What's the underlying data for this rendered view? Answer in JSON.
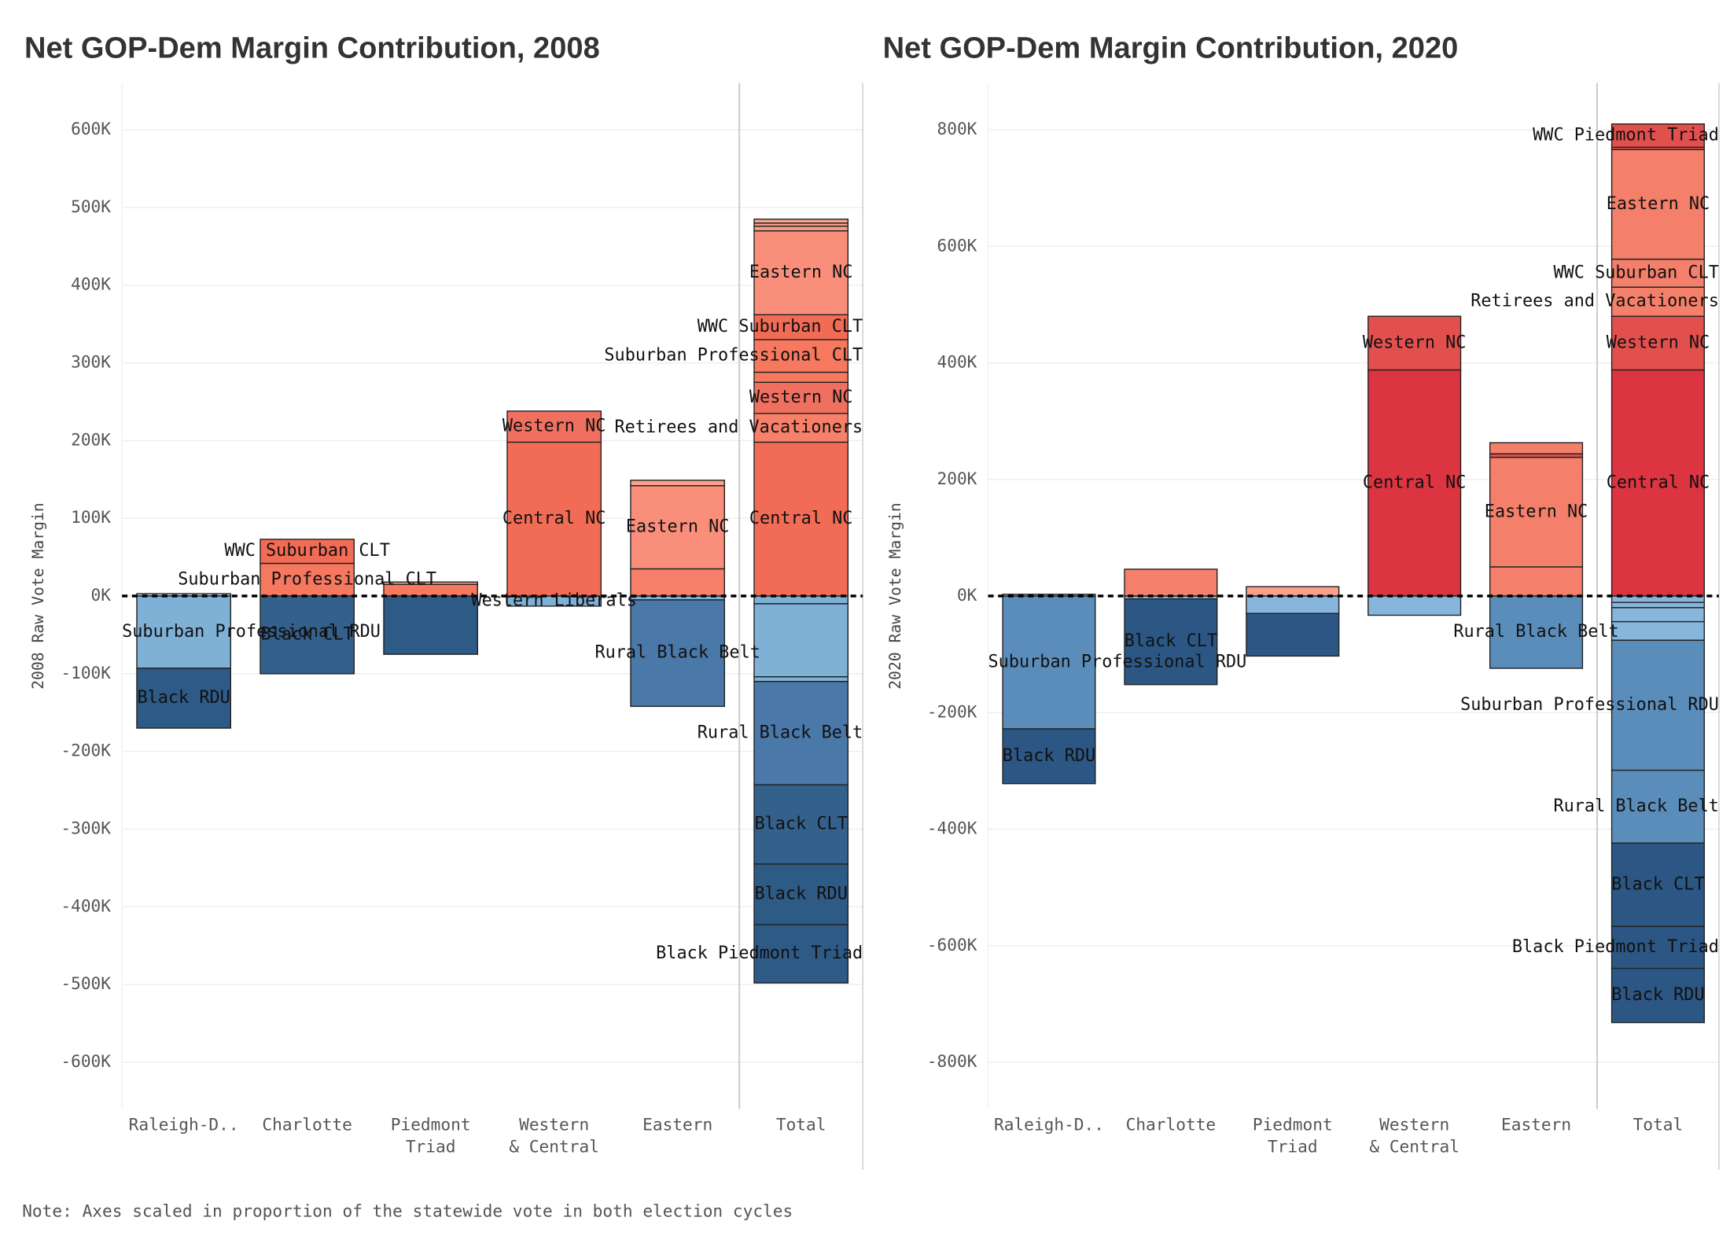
{
  "chart_data": [
    {
      "type": "bar",
      "stacked": true,
      "title": "Net GOP-Dem Margin Contribution, 2008",
      "y_label": "2008 Raw Vote Margin",
      "categories": [
        "Raleigh-D..",
        "Charlotte",
        "Piedmont Triad",
        "Western & Central",
        "Eastern",
        "Total"
      ],
      "ylim": [
        -660000,
        660000
      ],
      "yticks": [
        {
          "value": 600000,
          "label": "600K"
        },
        {
          "value": 500000,
          "label": "500K"
        },
        {
          "value": 400000,
          "label": "400K"
        },
        {
          "value": 300000,
          "label": "300K"
        },
        {
          "value": 200000,
          "label": "200K"
        },
        {
          "value": 100000,
          "label": "100K"
        },
        {
          "value": 0,
          "label": "0K"
        },
        {
          "value": -100000,
          "label": "-100K"
        },
        {
          "value": -200000,
          "label": "-200K"
        },
        {
          "value": -300000,
          "label": "-300K"
        },
        {
          "value": -400000,
          "label": "-400K"
        },
        {
          "value": -500000,
          "label": "-500K"
        },
        {
          "value": -600000,
          "label": "-600K"
        }
      ],
      "bars": [
        {
          "segments": [
            {
              "value": 3000,
              "color": "#b7d0e6"
            },
            {
              "value": -93000,
              "color": "#7fb0d6",
              "label": "Suburban Professional RDU"
            },
            {
              "value": -77000,
              "color": "#2e5a86",
              "label": "Black RDU"
            }
          ]
        },
        {
          "segments": [
            {
              "value": 42000,
              "color": "#f6785f",
              "label": "Suburban Professional CLT"
            },
            {
              "value": 31000,
              "color": "#f26b55",
              "label": "WWC Suburban CLT"
            },
            {
              "value": -100000,
              "color": "#34608c",
              "label": "Black CLT"
            }
          ]
        },
        {
          "segments": [
            {
              "value": 15000,
              "color": "#f6785f"
            },
            {
              "value": 3000,
              "color": "#f9a58f"
            },
            {
              "value": -75000,
              "color": "#2e5a86"
            }
          ]
        },
        {
          "segments": [
            {
              "value": 198000,
              "color": "#f26b55",
              "label": "Central NC"
            },
            {
              "value": 40000,
              "color": "#f07060",
              "label": "Western NC"
            },
            {
              "value": -13000,
              "color": "#7fb0d6",
              "label": "Western Liberals"
            }
          ]
        },
        {
          "segments": [
            {
              "value": 35000,
              "color": "#f6806a"
            },
            {
              "value": 107000,
              "color": "#f98f7b",
              "label": "Eastern NC"
            },
            {
              "value": 7000,
              "color": "#f9a08a"
            },
            {
              "value": -5000,
              "color": "#7fb0d6"
            },
            {
              "value": -137000,
              "color": "#4a78a8",
              "label": "Rural Black Belt"
            }
          ]
        },
        {
          "segments": [
            {
              "value": 198000,
              "color": "#f26b55",
              "label": "Central NC"
            },
            {
              "value": 37000,
              "color": "#f6806a",
              "label": "Retirees and Vacationers"
            },
            {
              "value": 40000,
              "color": "#f07060",
              "label": "Western NC"
            },
            {
              "value": 13000,
              "color": "#f6785f"
            },
            {
              "value": 42000,
              "color": "#f6785f",
              "label": "Suburban Professional CLT"
            },
            {
              "value": 32000,
              "color": "#f26b55",
              "label": "WWC Suburban CLT"
            },
            {
              "value": 108000,
              "color": "#f98f7b",
              "label": "Eastern NC"
            },
            {
              "value": 6000,
              "color": "#f9a08a"
            },
            {
              "value": 4000,
              "color": "#f9a58f"
            },
            {
              "value": 5000,
              "color": "#f9a58f"
            },
            {
              "value": -10000,
              "color": "#7fb0d6"
            },
            {
              "value": -94000,
              "color": "#7fb0d6"
            },
            {
              "value": -6000,
              "color": "#7fb0d6"
            },
            {
              "value": -133000,
              "color": "#4a78a8",
              "label": "Rural Black Belt"
            },
            {
              "value": -102000,
              "color": "#34608c",
              "label": "Black CLT"
            },
            {
              "value": -78000,
              "color": "#2e5a86",
              "label": "Black RDU"
            },
            {
              "value": -75000,
              "color": "#2e5a86",
              "label": "Black Piedmont Triad"
            }
          ]
        }
      ]
    },
    {
      "type": "bar",
      "stacked": true,
      "title": "Net GOP-Dem Margin Contribution, 2020",
      "y_label": "2020 Raw Vote Margin",
      "categories": [
        "Raleigh-D..",
        "Charlotte",
        "Piedmont Triad",
        "Western & Central",
        "Eastern",
        "Total"
      ],
      "ylim": [
        -880000,
        880000
      ],
      "yticks": [
        {
          "value": 800000,
          "label": "800K"
        },
        {
          "value": 600000,
          "label": "600K"
        },
        {
          "value": 400000,
          "label": "400K"
        },
        {
          "value": 200000,
          "label": "200K"
        },
        {
          "value": 0,
          "label": "0K"
        },
        {
          "value": -200000,
          "label": "-200K"
        },
        {
          "value": -400000,
          "label": "-400K"
        },
        {
          "value": -600000,
          "label": "-600K"
        },
        {
          "value": -800000,
          "label": "-800K"
        }
      ],
      "bars": [
        {
          "segments": [
            {
              "value": 3000,
              "color": "#b7d0e6"
            },
            {
              "value": -228000,
              "color": "#5b8dbb",
              "label": "Suburban Professional RDU"
            },
            {
              "value": -94000,
              "color": "#2c5784",
              "label": "Black RDU"
            }
          ]
        },
        {
          "segments": [
            {
              "value": 46000,
              "color": "#f47f6a"
            },
            {
              "value": -5000,
              "color": "#87b5dc"
            },
            {
              "value": -147000,
              "color": "#2c5784",
              "label": "Black CLT"
            }
          ]
        },
        {
          "segments": [
            {
              "value": 16000,
              "color": "#f9a08a"
            },
            {
              "value": -30000,
              "color": "#87b5dc"
            },
            {
              "value": -73000,
              "color": "#2c5784"
            }
          ]
        },
        {
          "segments": [
            {
              "value": 388000,
              "color": "#dc3440",
              "label": "Central NC"
            },
            {
              "value": 92000,
              "color": "#e2504e",
              "label": "Western NC"
            },
            {
              "value": -33000,
              "color": "#87b5dc"
            }
          ]
        },
        {
          "segments": [
            {
              "value": 50000,
              "color": "#f47f6a"
            },
            {
              "value": 188000,
              "color": "#f47f6a",
              "label": "Eastern NC"
            },
            {
              "value": 6000,
              "color": "#e2504e"
            },
            {
              "value": 19000,
              "color": "#f47f6a"
            },
            {
              "value": -124000,
              "color": "#5b8dbb",
              "label": "Rural Black Belt"
            }
          ]
        },
        {
          "segments": [
            {
              "value": 388000,
              "color": "#dc3440",
              "label": "Central NC"
            },
            {
              "value": 92000,
              "color": "#e2504e",
              "label": "Western NC"
            },
            {
              "value": 50000,
              "color": "#f47f6a",
              "label": "Retirees and Vacationers"
            },
            {
              "value": 48000,
              "color": "#f47f6a",
              "label": "WWC Suburban CLT"
            },
            {
              "value": 188000,
              "color": "#f47f6a",
              "label": "Eastern NC"
            },
            {
              "value": 4000,
              "color": "#e2504e"
            },
            {
              "value": 40000,
              "color": "#e2504e",
              "label": "WWC Piedmont Triad"
            },
            {
              "value": -11000,
              "color": "#87b5dc"
            },
            {
              "value": -9000,
              "color": "#87b5dc"
            },
            {
              "value": -24000,
              "color": "#87b5dc"
            },
            {
              "value": -32000,
              "color": "#87b5dc"
            },
            {
              "value": -223000,
              "color": "#5b8dbb",
              "label": "Suburban Professional RDU"
            },
            {
              "value": -125000,
              "color": "#5b8dbb",
              "label": "Rural Black Belt"
            },
            {
              "value": -143000,
              "color": "#2c5784",
              "label": "Black CLT"
            },
            {
              "value": -72000,
              "color": "#2c5784",
              "label": "Black Piedmont Triad"
            },
            {
              "value": -93000,
              "color": "#2c5784",
              "label": "Black RDU"
            }
          ]
        }
      ]
    }
  ],
  "note": "Note: Axes scaled in proportion of the statewide vote in both election cycles"
}
